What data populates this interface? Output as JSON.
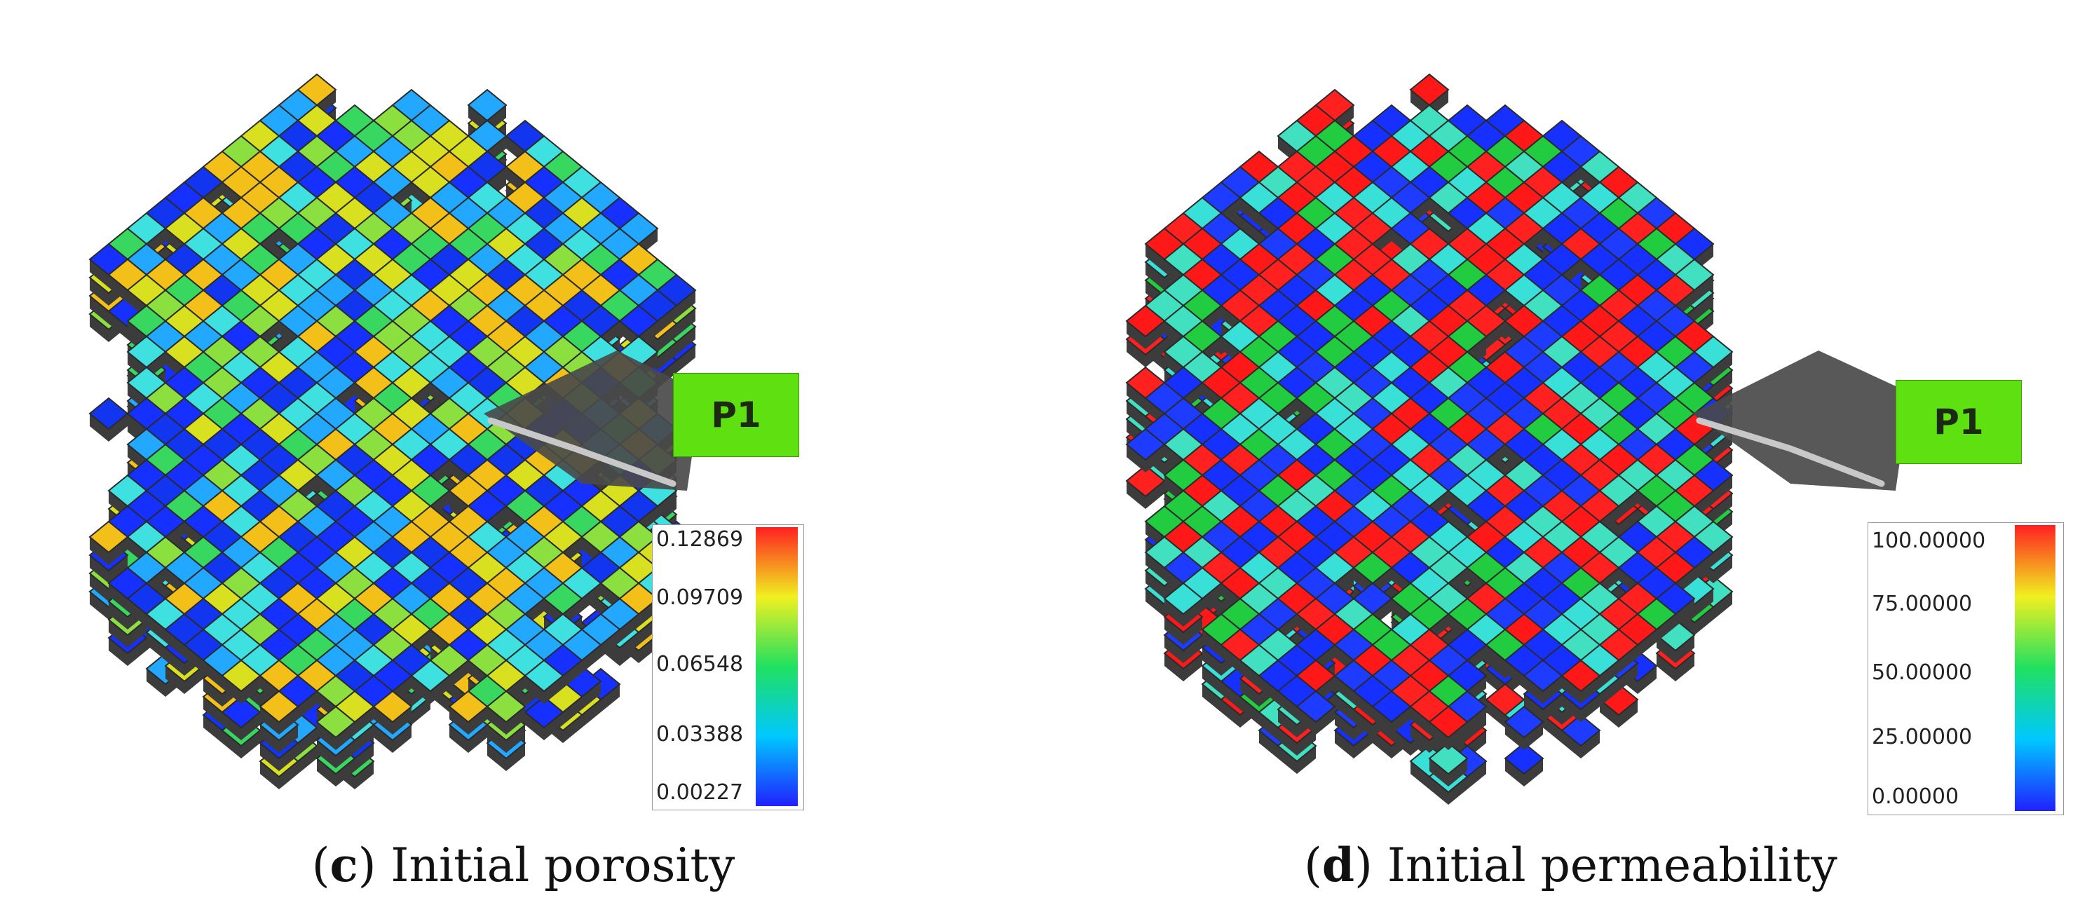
{
  "panels": [
    {
      "caption_letter": "c",
      "caption_text": "Initial porosity",
      "well_label": "P1",
      "colorbar_ticks": [
        "0.12869",
        "0.09709",
        "0.06548",
        "0.03388",
        "0.00227"
      ],
      "palette": [
        "#1530ff",
        "#22a8ff",
        "#3fe0e0",
        "#38d860",
        "#8be040",
        "#d8e020",
        "#f2c018",
        "#1236f0"
      ]
    },
    {
      "caption_letter": "d",
      "caption_text": "Initial permeability",
      "well_label": "P1",
      "colorbar_ticks": [
        "100.00000",
        "75.00000",
        "50.00000",
        "25.00000",
        "0.00000"
      ],
      "palette": [
        "#1530ff",
        "#1530ff",
        "#38e0d8",
        "#40e0c0",
        "#ff1818",
        "#1d3cff",
        "#22cc40",
        "#ff2020"
      ]
    }
  ],
  "colorbar_gradient": [
    "#2020ff",
    "#00c8ff",
    "#20e060",
    "#f0f020",
    "#ff2020"
  ]
}
